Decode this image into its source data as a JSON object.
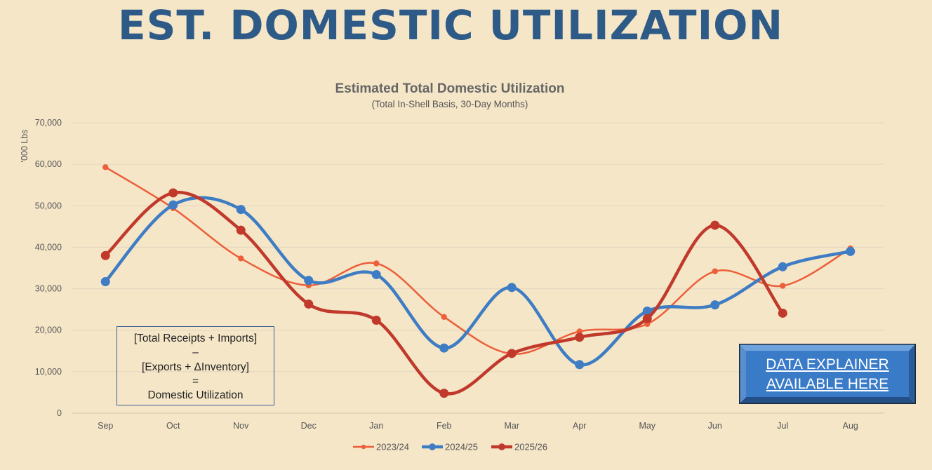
{
  "header": {
    "title": "EST. DOMESTIC UTILIZATION"
  },
  "formula": {
    "line1": "[Total Receipts + Imports]",
    "line2": "–",
    "line3": "[Exports + ΔInventory]",
    "line4": "=",
    "line5": "Domestic Utilization"
  },
  "explainer": {
    "line1": "DATA EXPLAINER",
    "line2": "AVAILABLE HERE",
    "color": "#3a7bc8",
    "border_color": "#1b2a3a"
  },
  "chart_data": {
    "type": "line",
    "title": "Estimated Total Domestic Utilization",
    "subtitle": "(Total In-Shell Basis, 30-Day Months)",
    "xlabel": "",
    "ylabel": "'000 Lbs",
    "ylim": [
      0,
      70000
    ],
    "yticks": [
      "0",
      "10,000",
      "20,000",
      "30,000",
      "40,000",
      "50,000",
      "60,000",
      "70,000"
    ],
    "grid": true,
    "legend": "bottom",
    "smooth": true,
    "categories": [
      "Sep",
      "Oct",
      "Nov",
      "Dec",
      "Jan",
      "Feb",
      "Mar",
      "Apr",
      "May",
      "Jun",
      "Jul",
      "Aug"
    ],
    "series": [
      {
        "name": "2023/24",
        "color": "#ec5f3a",
        "values": [
          59300,
          49400,
          37300,
          30800,
          36100,
          23200,
          14300,
          19700,
          21500,
          34200,
          30700,
          39700
        ]
      },
      {
        "name": "2024/25",
        "color": "#3e7cc4",
        "values": [
          31700,
          50200,
          49100,
          32000,
          33400,
          15700,
          30300,
          11700,
          24600,
          26100,
          35300,
          39000
        ]
      },
      {
        "name": "2025/26",
        "color": "#c0392b",
        "values": [
          38000,
          53100,
          44100,
          26300,
          22400,
          4800,
          14400,
          18300,
          22800,
          45300,
          24100,
          null
        ]
      }
    ]
  }
}
